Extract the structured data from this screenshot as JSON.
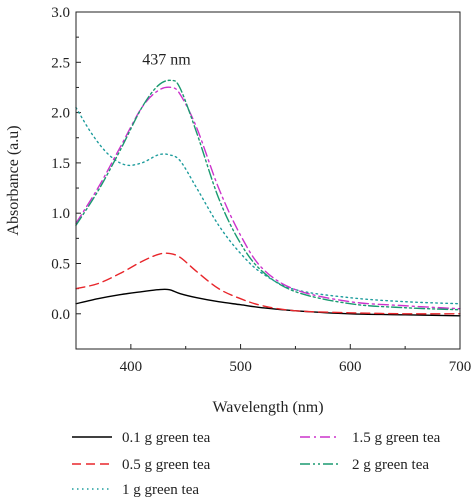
{
  "chart_data": {
    "type": "line",
    "xlabel": "Wavelength (nm)",
    "ylabel": "Absorbance (a.u)",
    "xlim": [
      350,
      700
    ],
    "ylim": [
      -0.35,
      3.0
    ],
    "x_ticks": [
      400,
      500,
      600,
      700
    ],
    "y_ticks": [
      0.0,
      0.5,
      1.0,
      1.5,
      2.0,
      2.5,
      3.0
    ],
    "x_tick_labels": [
      "400",
      "500",
      "600",
      "700"
    ],
    "y_tick_labels": [
      "0.0",
      "0.5",
      "1.0",
      "1.5",
      "2.0",
      "2.5",
      "3.0"
    ],
    "grid": false,
    "legend_position": "bottom",
    "annotations": [
      {
        "text": "437 nm",
        "x": 437,
        "y": 2.53
      }
    ],
    "series": [
      {
        "name": "0.1 g green tea",
        "color": "#000000",
        "dash": "solid",
        "x": [
          350,
          370,
          390,
          410,
          425,
          435,
          445,
          460,
          480,
          500,
          520,
          550,
          600,
          650,
          700
        ],
        "y": [
          0.1,
          0.15,
          0.19,
          0.22,
          0.24,
          0.24,
          0.2,
          0.16,
          0.12,
          0.09,
          0.06,
          0.03,
          0.0,
          -0.01,
          -0.02
        ]
      },
      {
        "name": "0.5 g green tea",
        "color": "#e8262b",
        "dash": "dashed",
        "x": [
          350,
          370,
          390,
          410,
          425,
          435,
          445,
          460,
          480,
          500,
          520,
          550,
          600,
          650,
          700
        ],
        "y": [
          0.25,
          0.3,
          0.4,
          0.52,
          0.59,
          0.6,
          0.56,
          0.42,
          0.25,
          0.15,
          0.08,
          0.03,
          0.01,
          0.0,
          0.0
        ]
      },
      {
        "name": "1 g green tea",
        "color": "#1f9d9d",
        "dash": "dotted",
        "x": [
          350,
          365,
          380,
          395,
          410,
          425,
          435,
          445,
          460,
          480,
          500,
          520,
          550,
          600,
          650,
          700
        ],
        "y": [
          2.05,
          1.78,
          1.58,
          1.48,
          1.5,
          1.58,
          1.58,
          1.52,
          1.25,
          0.88,
          0.6,
          0.4,
          0.24,
          0.16,
          0.12,
          0.1
        ]
      },
      {
        "name": "1.5 g green tea",
        "color": "#cc33cc",
        "dash": "dashdot",
        "x": [
          350,
          370,
          390,
          410,
          425,
          437,
          445,
          460,
          480,
          500,
          520,
          550,
          600,
          650,
          700
        ],
        "y": [
          0.9,
          1.25,
          1.65,
          2.05,
          2.22,
          2.25,
          2.18,
          1.85,
          1.25,
          0.78,
          0.45,
          0.24,
          0.12,
          0.08,
          0.05
        ]
      },
      {
        "name": "2 g green tea",
        "color": "#1a9a70",
        "dash": "dashdotdot",
        "x": [
          350,
          370,
          390,
          410,
          425,
          437,
          445,
          460,
          480,
          500,
          520,
          550,
          600,
          650,
          700
        ],
        "y": [
          0.88,
          1.22,
          1.62,
          2.05,
          2.27,
          2.32,
          2.24,
          1.8,
          1.15,
          0.7,
          0.42,
          0.22,
          0.1,
          0.06,
          0.04
        ]
      }
    ]
  }
}
